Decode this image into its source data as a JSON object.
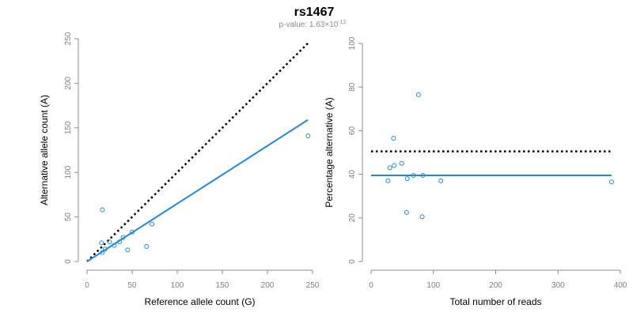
{
  "header": {
    "title": "rs1467",
    "pvalue_prefix": "p-value: 1.63×10",
    "pvalue_exponent": "-12"
  },
  "colors": {
    "points": "#1e88e5",
    "fit_line": "#1e88e5",
    "reference_line": "#000000",
    "axis": "#8c8c8c"
  },
  "chart_data": [
    {
      "type": "scatter",
      "name": "allele-counts",
      "xlabel": "Reference allele count (G)",
      "ylabel": "Alternative allele count (A)",
      "xlim": [
        0,
        250
      ],
      "ylim": [
        0,
        250
      ],
      "xticks": [
        0,
        50,
        100,
        150,
        200,
        250
      ],
      "yticks": [
        0,
        50,
        100,
        150,
        200,
        250
      ],
      "points": [
        {
          "x": 17,
          "y": 58
        },
        {
          "x": 16,
          "y": 21
        },
        {
          "x": 17,
          "y": 10
        },
        {
          "x": 20,
          "y": 14
        },
        {
          "x": 25,
          "y": 22
        },
        {
          "x": 30,
          "y": 18
        },
        {
          "x": 36,
          "y": 22
        },
        {
          "x": 40,
          "y": 27
        },
        {
          "x": 45,
          "y": 13
        },
        {
          "x": 50,
          "y": 33
        },
        {
          "x": 66,
          "y": 17
        },
        {
          "x": 72,
          "y": 42
        },
        {
          "x": 245,
          "y": 141
        }
      ],
      "lines": [
        {
          "name": "equal-proportion-reference",
          "style": "dotted",
          "from": [
            0,
            0
          ],
          "to": [
            245,
            245
          ]
        },
        {
          "name": "fitted-line",
          "style": "solid",
          "from": [
            0,
            0
          ],
          "to": [
            245,
            159
          ]
        }
      ]
    },
    {
      "type": "scatter",
      "name": "percentage-alternative",
      "xlabel": "Total number of reads",
      "ylabel": "Percentage alternative (A)",
      "xlim": [
        0,
        400
      ],
      "ylim": [
        0,
        100
      ],
      "xticks": [
        0,
        100,
        200,
        300,
        400
      ],
      "yticks": [
        0,
        20,
        40,
        60,
        80,
        100
      ],
      "points": [
        {
          "x": 27,
          "y": 37
        },
        {
          "x": 30,
          "y": 43
        },
        {
          "x": 36,
          "y": 56.5
        },
        {
          "x": 37,
          "y": 44
        },
        {
          "x": 49,
          "y": 45
        },
        {
          "x": 57,
          "y": 22.5
        },
        {
          "x": 58,
          "y": 38
        },
        {
          "x": 68,
          "y": 39.5
        },
        {
          "x": 76,
          "y": 76.5
        },
        {
          "x": 82,
          "y": 20.5
        },
        {
          "x": 83,
          "y": 39.5
        },
        {
          "x": 112,
          "y": 37
        },
        {
          "x": 386,
          "y": 36.5
        }
      ],
      "lines": [
        {
          "name": "reference-50-percent",
          "style": "dotted",
          "from": [
            0,
            50.5
          ],
          "to": [
            386,
            50.5
          ]
        },
        {
          "name": "fitted-mean-line",
          "style": "solid",
          "from": [
            0,
            39.5
          ],
          "to": [
            386,
            39.5
          ]
        }
      ]
    }
  ]
}
